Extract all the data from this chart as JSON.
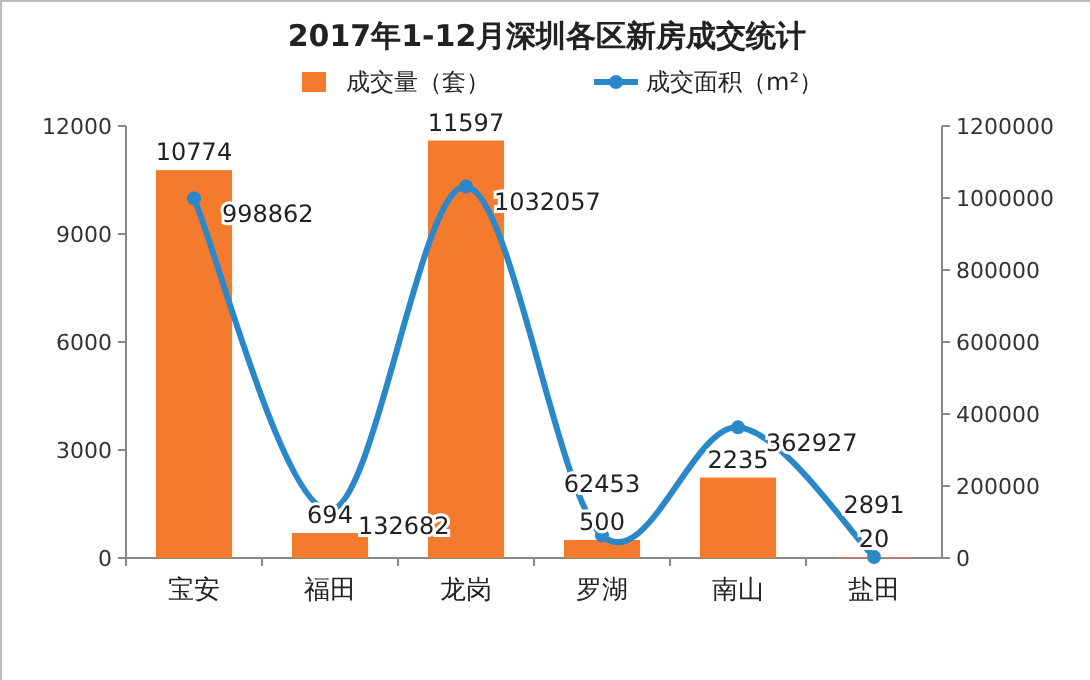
{
  "chart_data": {
    "type": "bar",
    "title": "2017年1-12月深圳各区新房成交统计",
    "categories": [
      "宝安",
      "福田",
      "龙岗",
      "罗湖",
      "南山",
      "盐田"
    ],
    "series": [
      {
        "name": "成交量（套）",
        "color": "#f47a2d",
        "values": [
          10774,
          694,
          11597,
          500,
          2235,
          20
        ]
      },
      {
        "name": "成交面积（m²）",
        "type": "line",
        "axis": "y2",
        "color": "#2a88c8",
        "marker": "circle",
        "values": [
          998862,
          132682,
          1032057,
          62453,
          362927,
          2891
        ]
      }
    ],
    "ylim": [
      0,
      12000
    ],
    "yticks": [
      0,
      3000,
      6000,
      9000,
      12000
    ],
    "y2lim": [
      0,
      1200000
    ],
    "y2ticks": [
      0,
      200000,
      400000,
      600000,
      800000,
      1000000,
      1200000
    ],
    "data_labels": true,
    "legend": "top",
    "grid": false
  }
}
